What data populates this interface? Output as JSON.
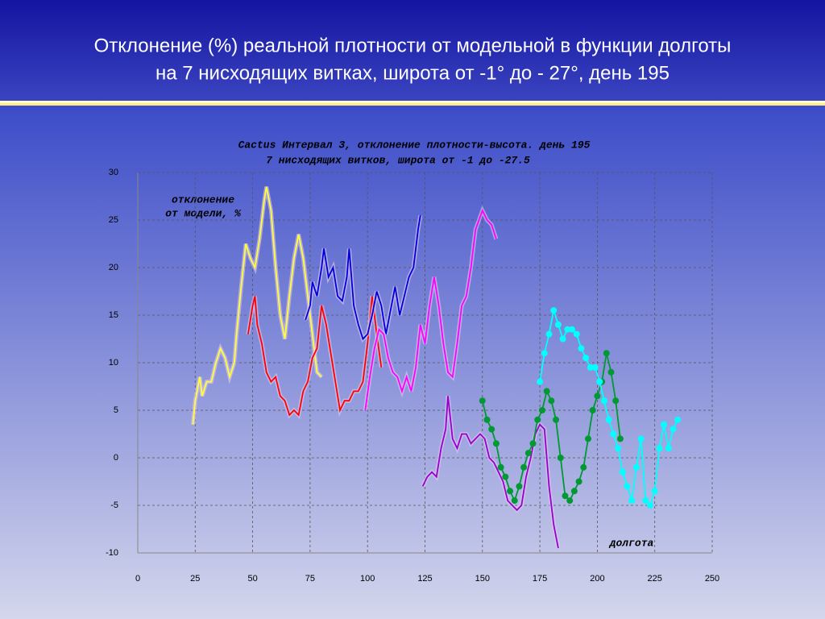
{
  "slide": {
    "title": [
      "Отклонение  (%) реальной плотности от модельной в функции долготы",
      "на 7 нисходящих витках, широта  от -1° до - 27°, день 195"
    ]
  },
  "chart_data": {
    "type": "line",
    "title": [
      "Cactus Интервал 3, отклонение плотности-высота. день 195",
      "7 нисходящих витков, широта от -1 до -27.5"
    ],
    "ylabel": [
      "отклонение",
      "от модели, %"
    ],
    "xlabel": "долгота",
    "xlim": [
      0,
      250
    ],
    "xticks": [
      0,
      25,
      50,
      75,
      100,
      125,
      150,
      175,
      200,
      225,
      250
    ],
    "ylim": [
      -10,
      30
    ],
    "yticks": [
      -10,
      -5,
      0,
      5,
      10,
      15,
      20,
      25,
      30
    ],
    "grid": true,
    "series": [
      {
        "color": "#ffff33",
        "markers": false,
        "x": [
          24,
          25,
          27,
          28,
          30,
          32,
          34,
          36,
          38,
          40,
          42,
          43,
          45,
          47,
          49,
          51,
          53,
          55,
          56,
          58,
          60,
          62,
          64,
          66,
          68,
          70,
          72,
          74,
          76,
          78,
          80
        ],
        "values": [
          3.5,
          6,
          8.5,
          6.5,
          8,
          8,
          10,
          11.5,
          10.5,
          8.5,
          10,
          13,
          18,
          22.5,
          21,
          20,
          23,
          27,
          28.5,
          26,
          20,
          15,
          12.5,
          17,
          21,
          23.5,
          21,
          17,
          13,
          9,
          8.5
        ]
      },
      {
        "color": "#ff0000",
        "markers": false,
        "x": [
          48,
          50,
          51,
          52,
          54,
          56,
          58,
          60,
          62,
          64,
          66,
          68,
          70,
          72,
          74,
          76,
          78,
          80,
          82,
          84,
          86,
          88,
          90,
          92,
          94,
          96,
          98,
          100,
          102,
          104,
          106
        ],
        "values": [
          13,
          16,
          17,
          14,
          12,
          9,
          8,
          8.5,
          6.5,
          6,
          4.5,
          5,
          4.5,
          7,
          8,
          10.5,
          11.5,
          16,
          14,
          11,
          8,
          5,
          6,
          6,
          7,
          7,
          8,
          12,
          17,
          13,
          9.5
        ]
      },
      {
        "color": "#0000dd",
        "markers": false,
        "x": [
          73,
          75,
          76,
          78,
          80,
          81,
          83,
          85,
          87,
          89,
          91,
          92,
          94,
          96,
          98,
          100,
          102,
          104,
          106,
          108,
          110,
          112,
          114,
          116,
          118,
          120,
          122,
          123
        ],
        "values": [
          14.5,
          16,
          18.5,
          17,
          20,
          22,
          19,
          20,
          17,
          16.5,
          19,
          22,
          16,
          14,
          12.5,
          13,
          15,
          17.5,
          16,
          13,
          15.5,
          18,
          15,
          17,
          19,
          20,
          24,
          25.5
        ]
      },
      {
        "color": "#ff00ff",
        "markers": false,
        "x": [
          99,
          101,
          103,
          105,
          107,
          109,
          111,
          113,
          115,
          117,
          119,
          121,
          123,
          125,
          127,
          129,
          131,
          133,
          135,
          137,
          139,
          141,
          143,
          145,
          147,
          150,
          152,
          154,
          156
        ],
        "values": [
          5,
          8.5,
          11.5,
          13.5,
          13,
          10.5,
          9,
          8.5,
          7,
          8.5,
          7,
          9.5,
          14,
          12,
          16,
          19,
          16,
          12,
          9,
          8.5,
          12,
          16,
          17,
          20,
          24,
          26,
          25,
          24.5,
          23
        ]
      },
      {
        "color": "#9900cc",
        "markers": false,
        "x": [
          124,
          126,
          128,
          130,
          132,
          134,
          135,
          137,
          139,
          141,
          143,
          145,
          147,
          149,
          151,
          153,
          155,
          157,
          159,
          161,
          163,
          165,
          167,
          169,
          171,
          173,
          175,
          177,
          179,
          181,
          183
        ],
        "values": [
          -3,
          -2,
          -1.5,
          -2,
          1,
          3,
          6.5,
          2,
          1,
          2.5,
          2.5,
          1.5,
          2,
          2.5,
          2,
          0,
          -0.5,
          -1.5,
          -2.5,
          -4.5,
          -5,
          -5.5,
          -5,
          -2,
          0,
          2.5,
          3.5,
          3,
          -3,
          -7,
          -9.5
        ]
      },
      {
        "color": "#009933",
        "markers": true,
        "x": [
          150,
          152,
          154,
          156,
          158,
          160,
          162,
          164,
          166,
          168,
          170,
          172,
          174,
          176,
          178,
          180,
          182,
          184,
          186,
          188,
          190,
          192,
          194,
          196,
          198,
          200,
          202,
          204,
          206,
          208,
          210
        ],
        "values": [
          6,
          4,
          3,
          1.5,
          -1,
          -2,
          -3.5,
          -4.5,
          -3,
          -1,
          0.5,
          1.5,
          4,
          5,
          7,
          6,
          4,
          0,
          -4,
          -4.5,
          -3.5,
          -2.5,
          -1,
          2,
          5,
          6.5,
          8,
          11,
          9,
          6,
          2
        ]
      },
      {
        "color": "#00ffff",
        "markers": true,
        "x": [
          175,
          177,
          179,
          181,
          183,
          185,
          187,
          189,
          191,
          193,
          195,
          197,
          199,
          201,
          203,
          205,
          207,
          209,
          211,
          213,
          215,
          217,
          219,
          221,
          223,
          225,
          227,
          229,
          231,
          233,
          235
        ],
        "values": [
          8,
          11,
          13,
          15.5,
          14,
          12.5,
          13.5,
          13.5,
          13,
          11.5,
          10.5,
          9.5,
          9.5,
          8,
          6,
          4,
          2.5,
          1,
          -1.5,
          -3,
          -4.5,
          -1,
          2,
          -4.5,
          -5,
          -3.5,
          1,
          3.5,
          1,
          3,
          4
        ]
      }
    ]
  }
}
